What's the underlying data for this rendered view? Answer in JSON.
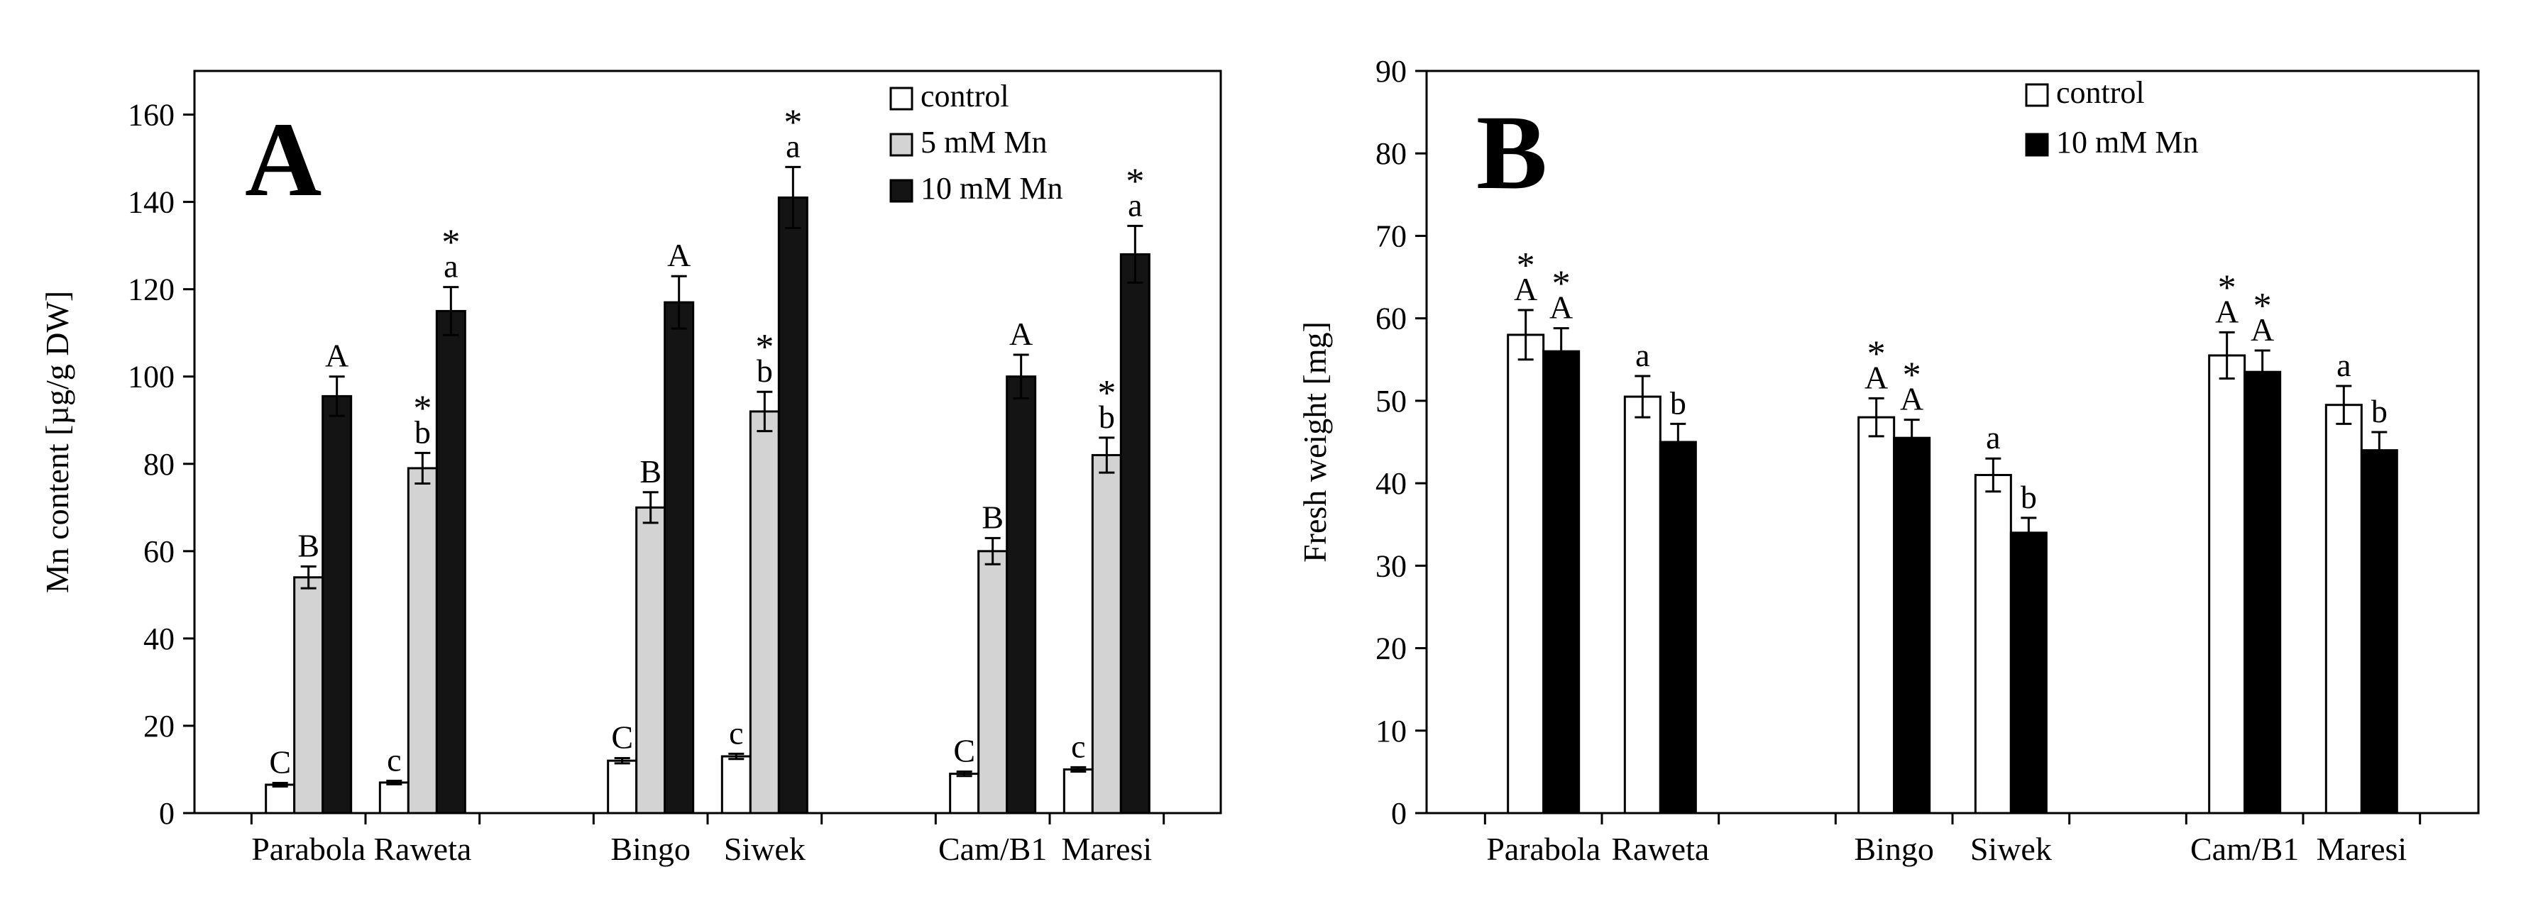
{
  "figure": {
    "panels": [
      "A",
      "B"
    ]
  },
  "chart_data": [
    {
      "panel": "A",
      "type": "bar",
      "title": "",
      "panel_letter": "A",
      "xlabel": "",
      "ylabel": "Mn content [µg/g DW]",
      "ylim": [
        0,
        170
      ],
      "yticks": [
        0,
        20,
        40,
        60,
        80,
        100,
        120,
        140,
        160
      ],
      "grid": false,
      "legend_position": "top-right",
      "categories": [
        "Parabola",
        "Raweta",
        "Bingo",
        "Siwek",
        "Cam/B1",
        "Maresi"
      ],
      "category_labels": [
        "Parabola",
        "Raweta",
        "Bingo",
        "Siwek",
        "Cam/B1",
        "Maresi"
      ],
      "group_positions": [
        1,
        2,
        4,
        5,
        7,
        8
      ],
      "x_range": [
        0,
        9
      ],
      "series": [
        {
          "name": "control",
          "color": "#ffffff",
          "values": [
            6.5,
            7,
            12,
            13,
            9,
            10
          ],
          "errors": [
            0.4,
            0.4,
            0.6,
            0.6,
            0.5,
            0.5
          ],
          "labels": [
            "C",
            "c",
            "C",
            "c",
            "C",
            "c"
          ],
          "stars": [
            false,
            false,
            false,
            false,
            false,
            false
          ]
        },
        {
          "name": "5 mM Mn",
          "color": "#d3d3d3",
          "values": [
            54,
            79,
            70,
            92,
            60,
            82
          ],
          "errors": [
            2.5,
            3.5,
            3.5,
            4.5,
            3,
            4
          ],
          "labels": [
            "B",
            "b",
            "B",
            "b",
            "B",
            "b"
          ],
          "stars": [
            false,
            true,
            false,
            true,
            false,
            true
          ]
        },
        {
          "name": "10 mM Mn",
          "color": "#141414",
          "values": [
            95.5,
            115,
            117,
            141,
            100,
            128
          ],
          "errors": [
            4.5,
            5.5,
            6,
            7,
            5,
            6.5
          ],
          "labels": [
            "A",
            "a",
            "A",
            "a",
            "A",
            "a"
          ],
          "stars": [
            false,
            true,
            false,
            true,
            false,
            true
          ]
        }
      ]
    },
    {
      "panel": "B",
      "type": "bar",
      "title": "",
      "panel_letter": "B",
      "xlabel": "",
      "ylabel": "Fresh weight [mg]",
      "ylim": [
        0,
        90
      ],
      "yticks": [
        0,
        10,
        20,
        30,
        40,
        50,
        60,
        70,
        80,
        90
      ],
      "grid": false,
      "legend_position": "top-center",
      "categories": [
        "Parabola",
        "Raweta",
        "Bingo",
        "Siwek",
        "Cam/B1",
        "Maresi"
      ],
      "category_labels": [
        "Parabola",
        "Raweta",
        "Bingo",
        "Siwek",
        "Cam/B1",
        "Maresi"
      ],
      "group_positions": [
        1,
        2,
        4,
        5,
        7,
        8
      ],
      "x_range": [
        0,
        9
      ],
      "series": [
        {
          "name": "control",
          "color": "#ffffff",
          "values": [
            58,
            50.5,
            48,
            41,
            55.5,
            49.5
          ],
          "errors": [
            3,
            2.5,
            2.3,
            2,
            2.8,
            2.3
          ],
          "labels": [
            "A",
            "a",
            "A",
            "a",
            "A",
            "a"
          ],
          "stars": [
            true,
            false,
            true,
            false,
            true,
            false
          ]
        },
        {
          "name": "10 mM Mn",
          "color": "#000000",
          "values": [
            56,
            45,
            45.5,
            34,
            53.5,
            44
          ],
          "errors": [
            2.8,
            2.2,
            2.2,
            1.8,
            2.6,
            2.2
          ],
          "labels": [
            "A",
            "b",
            "A",
            "b",
            "A",
            "b"
          ],
          "stars": [
            true,
            false,
            true,
            false,
            true,
            false
          ]
        }
      ]
    }
  ]
}
